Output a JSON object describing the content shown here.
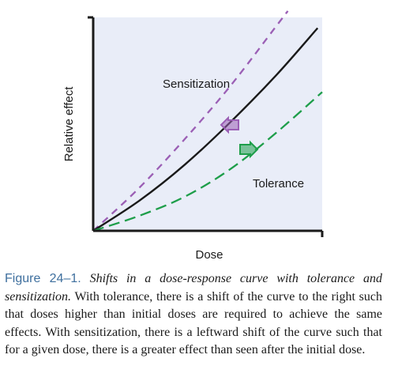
{
  "chart_data": {
    "type": "line",
    "xlabel": "Dose",
    "ylabel": "Relative effect",
    "xlim": [
      0,
      1
    ],
    "ylim": [
      0,
      1
    ],
    "grid": false,
    "series": [
      {
        "name": "Sensitization",
        "style": "dashed",
        "color": "#9b5fb5",
        "x": [
          0,
          0.2,
          0.4,
          0.6,
          0.8,
          0.85
        ],
        "y": [
          0,
          0.2,
          0.43,
          0.68,
          0.96,
          1.03
        ]
      },
      {
        "name": "",
        "style": "solid",
        "color": "#1a1a1a",
        "x": [
          0,
          0.2,
          0.4,
          0.6,
          0.8,
          0.98
        ],
        "y": [
          0,
          0.14,
          0.31,
          0.51,
          0.73,
          0.95
        ]
      },
      {
        "name": "Tolerance",
        "style": "dashed",
        "color": "#1e9e4a",
        "x": [
          0,
          0.2,
          0.4,
          0.6,
          0.8,
          1.0
        ],
        "y": [
          0,
          0.07,
          0.16,
          0.29,
          0.46,
          0.65
        ]
      }
    ],
    "annotations": [
      {
        "text": "Sensitization",
        "arrow": "left",
        "color": "#9b5fb5"
      },
      {
        "text": "Tolerance",
        "arrow": "right",
        "color": "#1e9e4a"
      }
    ],
    "background_color": "#e9edf8"
  },
  "caption": {
    "label": "Figure 24–1.",
    "title": "Shifts in a dose-response curve with tolerance and sensitization.",
    "body": "With tolerance, there is a shift of the curve to the right such that doses higher than initial doses are required to achieve the same effects. With sensitization, there is a leftward shift of the curve such that for a given dose, there is a greater effect than seen after the initial dose."
  }
}
